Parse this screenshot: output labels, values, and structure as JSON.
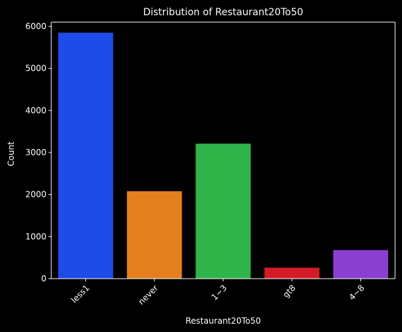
{
  "chart_data": {
    "type": "bar",
    "title": "Distribution of Restaurant20To50",
    "xlabel": "Restaurant20To50",
    "ylabel": "Count",
    "categories": [
      "less1",
      "never",
      "1~3",
      "gt8",
      "4~8"
    ],
    "values": [
      5850,
      2080,
      3210,
      260,
      680
    ],
    "colors": [
      "#1f4be8",
      "#e37f1f",
      "#2fb44a",
      "#d41c26",
      "#8a3fd0"
    ],
    "ylim": [
      0,
      6100
    ],
    "yticks": [
      0,
      1000,
      2000,
      3000,
      4000,
      5000,
      6000
    ],
    "grid": false,
    "background": "#000000",
    "text_color": "#ffffff"
  }
}
